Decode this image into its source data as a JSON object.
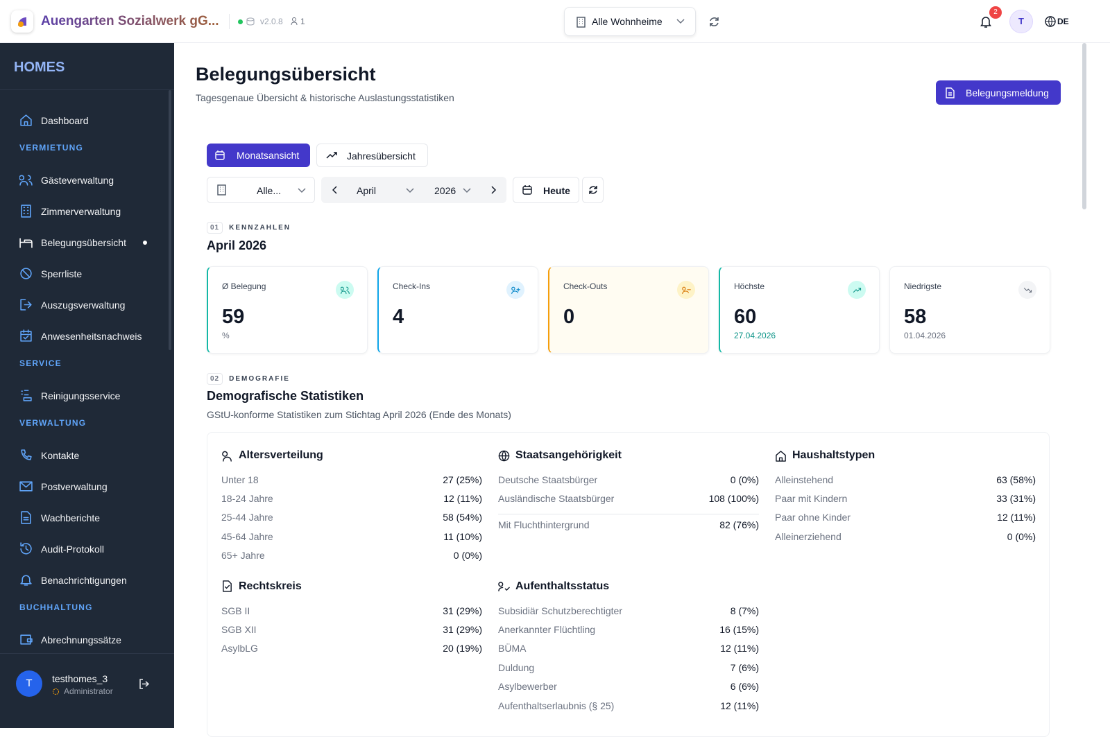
{
  "header": {
    "org": "Auengarten Sozialwerk gG...",
    "version": "v2.0.8",
    "users": "1",
    "home_select": "Alle Wohnheime",
    "notifications": "2",
    "avatar": "T",
    "lang": "DE"
  },
  "sidebar": {
    "brand": "HOMES",
    "top": "Dashboard",
    "groups": [
      {
        "heading": "VERMIETUNG",
        "items": [
          "Gästeverwaltung",
          "Zimmerverwaltung",
          "Belegungsübersicht",
          "Sperrliste",
          "Auszugsverwaltung",
          "Anwesenheitsnachweis"
        ]
      },
      {
        "heading": "SERVICE",
        "items": [
          "Reinigungsservice"
        ]
      },
      {
        "heading": "VERWALTUNG",
        "items": [
          "Kontakte",
          "Postverwaltung",
          "Wachberichte",
          "Audit-Protokoll",
          "Benachrichtigungen"
        ]
      },
      {
        "heading": "BUCHHALTUNG",
        "items": [
          "Abrechnungssätze"
        ]
      }
    ],
    "user": {
      "avatar": "T",
      "name": "testhomes_3",
      "role": "Administrator"
    }
  },
  "page": {
    "title": "Belegungsübersicht",
    "subtitle": "Tagesgenaue Übersicht & historische Auslastungsstatistiken",
    "action": "Belegungsmeldung"
  },
  "tabs": [
    "Monatsansicht",
    "Jahresübersicht"
  ],
  "filters": {
    "home": "Alle...",
    "month": "April",
    "year": "2026",
    "today": "Heute"
  },
  "kpi_section": {
    "number": "01",
    "label": "KENNZAHLEN",
    "title": "April 2026",
    "cards": [
      {
        "label": "Ø Belegung",
        "value": "59",
        "sub": "%"
      },
      {
        "label": "Check-Ins",
        "value": "4"
      },
      {
        "label": "Check-Outs",
        "value": "0"
      },
      {
        "label": "Höchste",
        "value": "60",
        "sub": "27.04.2026"
      },
      {
        "label": "Niedrigste",
        "value": "58",
        "sub": "01.04.2026"
      }
    ]
  },
  "demo_section": {
    "number": "02",
    "label": "DEMOGRAFIE",
    "title": "Demografische Statistiken",
    "subtitle": "GStU-konforme Statistiken zum Stichtag April 2026 (Ende des Monats)",
    "groups": [
      {
        "title": "Altersverteilung",
        "rows": [
          [
            "Unter 18",
            "27 (25%)"
          ],
          [
            "18-24 Jahre",
            "12 (11%)"
          ],
          [
            "25-44 Jahre",
            "58 (54%)"
          ],
          [
            "45-64 Jahre",
            "11 (10%)"
          ],
          [
            "65+ Jahre",
            "0 (0%)"
          ]
        ]
      },
      {
        "title": "Staatsangehörigkeit",
        "rows": [
          [
            "Deutsche Staatsbürger",
            "0 (0%)"
          ],
          [
            "Ausländische Staatsbürger",
            "108 (100%)"
          ]
        ],
        "extra_rows": [
          [
            "Mit Fluchthintergrund",
            "82 (76%)"
          ]
        ]
      },
      {
        "title": "Haushaltstypen",
        "rows": [
          [
            "Alleinstehend",
            "63 (58%)"
          ],
          [
            "Paar mit Kindern",
            "33 (31%)"
          ],
          [
            "Paar ohne Kinder",
            "12 (11%)"
          ],
          [
            "Alleinerziehend",
            "0 (0%)"
          ]
        ]
      },
      {
        "title": "Rechtskreis",
        "rows": [
          [
            "SGB II",
            "31 (29%)"
          ],
          [
            "SGB XII",
            "31 (29%)"
          ],
          [
            "AsylbLG",
            "20 (19%)"
          ]
        ]
      },
      {
        "title": "Aufenthaltsstatus",
        "rows": [
          [
            "Subsidiär Schutzberechtigter",
            "8 (7%)"
          ],
          [
            "Anerkannter Flüchtling",
            "16 (15%)"
          ],
          [
            "BÜMA",
            "12 (11%)"
          ],
          [
            "Duldung",
            "7 (6%)"
          ],
          [
            "Asylbewerber",
            "6 (6%)"
          ],
          [
            "Aufenthaltserlaubnis (§ 25)",
            "12 (11%)"
          ]
        ]
      }
    ]
  }
}
